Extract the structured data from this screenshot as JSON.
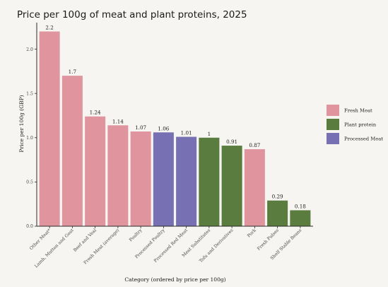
{
  "chart_data": {
    "type": "bar",
    "title": "Price per 100g of meat and plant proteins, 2025",
    "xlabel": "Category (ordered by price per 100g)",
    "ylabel": "Price per 100g (GBP)",
    "ylim": [
      0,
      2.3
    ],
    "yticks": [
      "0.0",
      "0.5",
      "1.0",
      "1.5",
      "2.0"
    ],
    "grid": false,
    "legend_position": "right",
    "legend": [
      {
        "name": "Fresh Meat",
        "color": "#e0959e"
      },
      {
        "name": "Plant protein",
        "color": "#5a7d3f"
      },
      {
        "name": "Processed Meat",
        "color": "#7770b3"
      }
    ],
    "categories": [
      "Other Meat*",
      "Lamb, Mutton and Goat",
      "Beef and Veal",
      "Fresh Meat (average)",
      "Poultry",
      "Processed Poultry",
      "Processed Red Meat",
      "Meat Substitutes",
      "Tofu and Derivatives",
      "Pork",
      "Fresh Pulses",
      "Shelf Stable Beans"
    ],
    "values": [
      2.2,
      1.7,
      1.24,
      1.14,
      1.07,
      1.06,
      1.01,
      1,
      0.91,
      0.87,
      0.29,
      0.18
    ],
    "value_labels": [
      "2.2",
      "1.7",
      "1.24",
      "1.14",
      "1.07",
      "1.06",
      "1.01",
      "1",
      "0.91",
      "0.87",
      "0.29",
      "0.18"
    ],
    "groups": [
      "Fresh Meat",
      "Fresh Meat",
      "Fresh Meat",
      "Fresh Meat",
      "Fresh Meat",
      "Processed Meat",
      "Processed Meat",
      "Plant protein",
      "Plant protein",
      "Fresh Meat",
      "Plant protein",
      "Plant protein"
    ]
  }
}
